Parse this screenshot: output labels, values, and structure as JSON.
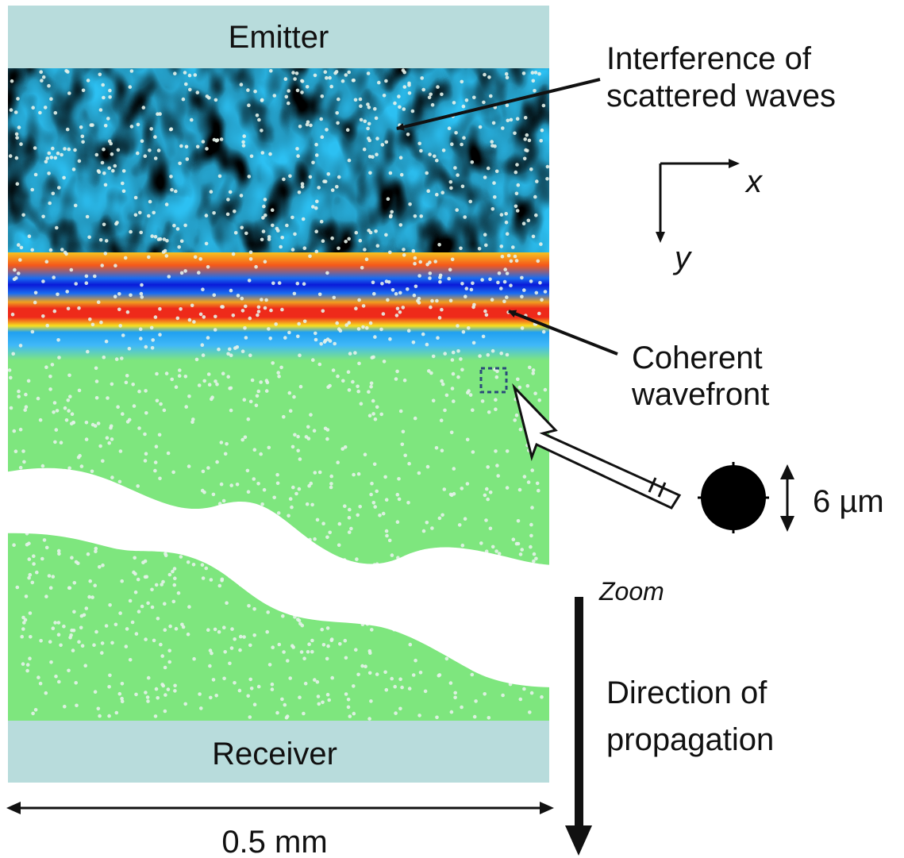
{
  "labels": {
    "emitter": "Emitter",
    "receiver": "Receiver",
    "interference_line1": "Interference of",
    "interference_line2": "scattered waves",
    "coherent_line1": "Coherent",
    "coherent_line2": "wavefront",
    "axis_x": "x",
    "axis_y": "y",
    "particle_size": "6 µm",
    "zoom": "Zoom",
    "direction_line1": "Direction of",
    "direction_line2": "propagation",
    "width_scale": "0.5 mm"
  },
  "colors": {
    "transducer": "#b8dcdc",
    "medium": "#7ee67e",
    "scatterer": "#e6f2ea",
    "wave_red": "#ee2a1a",
    "wave_blue": "#0a1ad8",
    "wave_cyan": "#20b8f0",
    "wave_yellow": "#f8e020"
  }
}
